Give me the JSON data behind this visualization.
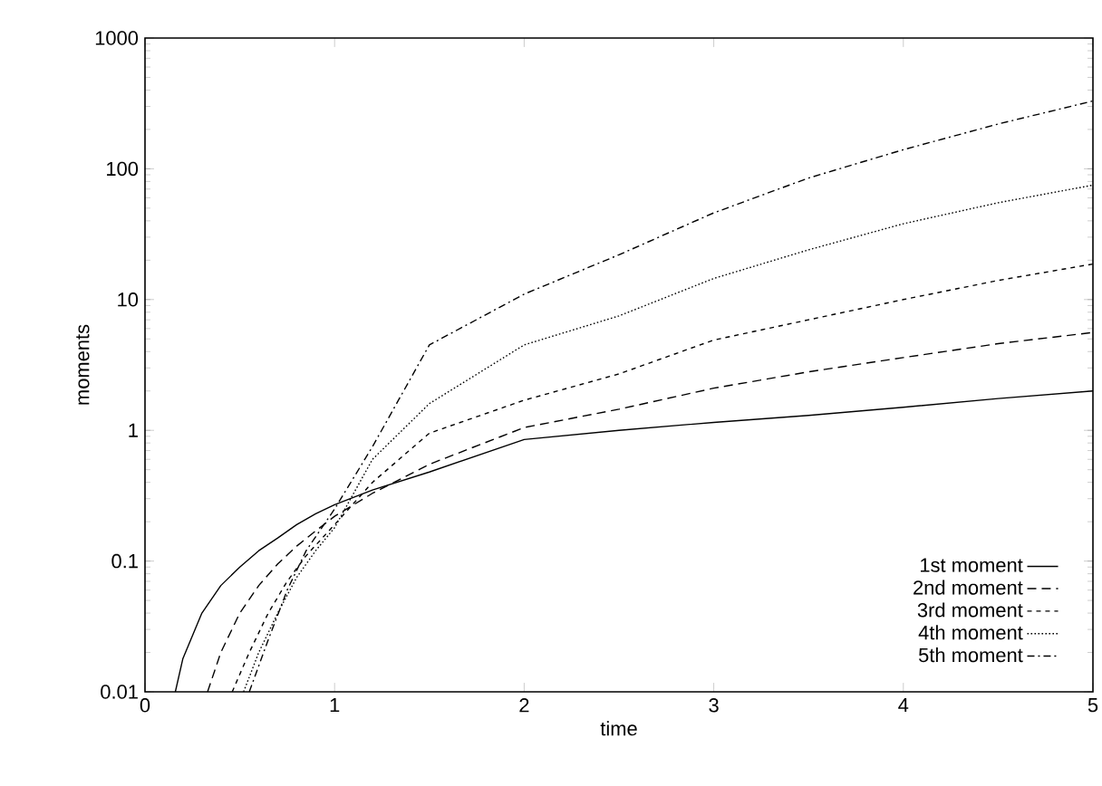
{
  "chart_data": {
    "type": "line",
    "xlabel": "time",
    "ylabel": "moments",
    "log": "y",
    "legend": "bottom right",
    "grid": false,
    "xlim": [
      0,
      5
    ],
    "ylim": [
      0.01,
      1000
    ],
    "xticks": [
      0,
      1,
      2,
      3,
      4,
      5
    ],
    "yticks": [
      0.01,
      0.1,
      1,
      10,
      100,
      1000
    ],
    "series": [
      {
        "name": "1st moment",
        "color": "#000000",
        "line_style": "solid",
        "x": [
          0.16,
          0.2,
          0.3,
          0.4,
          0.5,
          0.6,
          0.7,
          0.8,
          0.9,
          1.0,
          1.2,
          1.5,
          2,
          2.5,
          3,
          3.5,
          4,
          4.5,
          5
        ],
        "values": [
          0.01,
          0.018,
          0.04,
          0.065,
          0.09,
          0.12,
          0.15,
          0.19,
          0.23,
          0.27,
          0.35,
          0.48,
          0.85,
          1.0,
          1.15,
          1.3,
          1.5,
          1.75,
          2.0
        ]
      },
      {
        "name": "2nd moment",
        "color": "#000000",
        "line_style": "dashed",
        "x": [
          0.33,
          0.4,
          0.5,
          0.6,
          0.7,
          0.8,
          0.9,
          1.0,
          1.2,
          1.5,
          2,
          2.5,
          3,
          3.5,
          4,
          4.5,
          5
        ],
        "values": [
          0.01,
          0.02,
          0.04,
          0.065,
          0.095,
          0.13,
          0.17,
          0.22,
          0.33,
          0.55,
          1.05,
          1.45,
          2.1,
          2.8,
          3.6,
          4.6,
          5.6
        ]
      },
      {
        "name": "3rd moment",
        "color": "#000000",
        "line_style": "densely dashed",
        "x": [
          0.46,
          0.55,
          0.65,
          0.75,
          0.85,
          1.0,
          1.2,
          1.5,
          2,
          2.5,
          3,
          3.5,
          4,
          4.5,
          5
        ],
        "values": [
          0.01,
          0.02,
          0.04,
          0.07,
          0.11,
          0.19,
          0.4,
          0.95,
          1.7,
          2.7,
          4.9,
          7,
          10,
          14,
          18.7
        ]
      },
      {
        "name": "4th moment",
        "color": "#000000",
        "line_style": "dotted",
        "x": [
          0.52,
          0.6,
          0.7,
          0.8,
          0.9,
          1.0,
          1.2,
          1.5,
          2,
          2.5,
          3,
          3.5,
          4,
          4.5,
          5
        ],
        "values": [
          0.01,
          0.02,
          0.04,
          0.075,
          0.12,
          0.18,
          0.6,
          1.6,
          4.5,
          7.5,
          14.5,
          24,
          38,
          55,
          75
        ]
      },
      {
        "name": "5th moment",
        "color": "#000000",
        "line_style": "dashdot",
        "x": [
          0.55,
          0.65,
          0.75,
          0.85,
          1.0,
          1.2,
          1.5,
          2,
          2.5,
          3,
          3.5,
          4,
          4.5,
          5
        ],
        "values": [
          0.01,
          0.025,
          0.06,
          0.12,
          0.25,
          0.75,
          4.5,
          11,
          22,
          46,
          85,
          140,
          220,
          330
        ]
      }
    ]
  }
}
